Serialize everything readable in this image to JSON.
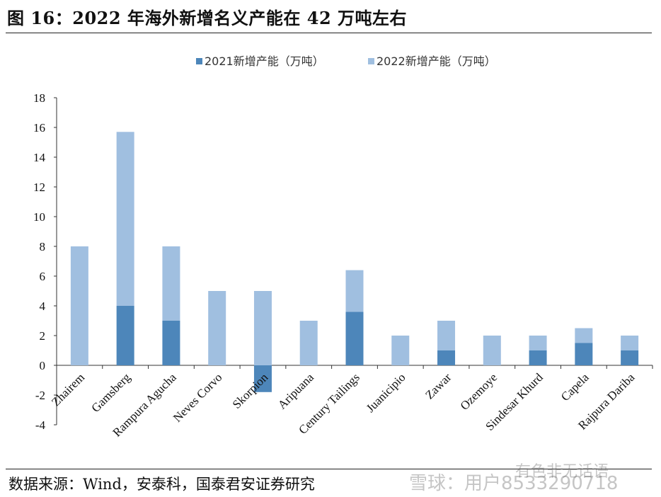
{
  "title": "图 16：2022 年海外新增名义产能在 42 万吨左右",
  "source": "数据来源：Wind，安泰科，国泰君安证券研究",
  "watermark": {
    "text1": "有色非无话语",
    "text2": "雪球：用户8533290718"
  },
  "colors": {
    "series2021": "#4d86ba",
    "series2022": "#a0bfe0"
  },
  "chart_data": {
    "type": "bar",
    "stacked": true,
    "categories": [
      "Zhairem",
      "Gamsberg",
      "Rampura Agucha",
      "Neves Corvo",
      "Skorpion",
      "Aripuana",
      "Century Tailings",
      "Juanicipio",
      "Zawar",
      "Ozemoye",
      "Sindesar Khurd",
      "Capela",
      "Rajpura Dariba"
    ],
    "series": [
      {
        "name": "2021新增产能（万吨）",
        "values": [
          0,
          4,
          3,
          0,
          -1.8,
          0,
          3.6,
          0,
          1,
          0,
          1,
          1.5,
          1
        ]
      },
      {
        "name": "2022新增产能（万吨）",
        "values": [
          8,
          11.7,
          5,
          5,
          5,
          3,
          2.8,
          2,
          2,
          2,
          1,
          1,
          1
        ]
      }
    ],
    "ylim": [
      -4,
      18
    ],
    "yticks": [
      -4,
      -2,
      0,
      2,
      4,
      6,
      8,
      10,
      12,
      14,
      16,
      18
    ],
    "grid": false,
    "legend": "top"
  }
}
